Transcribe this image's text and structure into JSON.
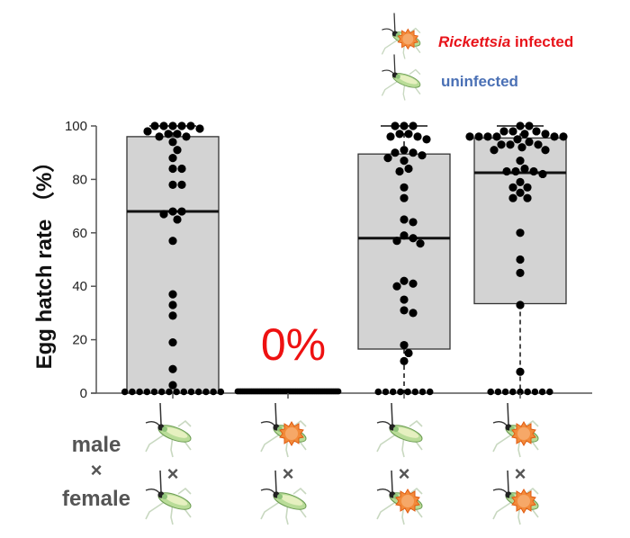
{
  "chart_data": {
    "type": "box",
    "title": "",
    "ylabel": "Egg hatch rate （%）",
    "xlabel": "",
    "ylim": [
      0,
      100
    ],
    "yticks": [
      0,
      20,
      40,
      60,
      80,
      100
    ],
    "grid": false,
    "legend": {
      "placement": "top-right",
      "entries": [
        {
          "name": "Rickettsia",
          "suffix": " infected",
          "icon": "infected-bug-icon",
          "color": "#e8141b"
        },
        {
          "name": "uninfected",
          "suffix": "",
          "icon": "uninfected-bug-icon",
          "color": "#4a70b5"
        }
      ]
    },
    "row_labels": {
      "male": "male",
      "cross": "×",
      "female": "female"
    },
    "groups": [
      {
        "name": "uninfected male × uninfected female",
        "male": "uninfected",
        "female": "uninfected",
        "box": {
          "whisker_low": 0,
          "q1": 0,
          "median": 68,
          "q3": 96,
          "whisker_high": 100
        },
        "points": [
          100,
          100,
          100,
          100,
          100,
          99,
          98,
          97,
          97,
          96,
          96,
          94,
          91,
          88,
          84,
          84,
          78,
          78,
          68,
          68,
          67,
          65,
          57,
          37,
          33,
          29,
          19,
          9,
          3,
          0,
          0,
          0,
          0,
          0,
          0,
          0,
          0,
          0,
          0,
          0,
          0,
          0,
          0
        ],
        "annotation": ""
      },
      {
        "name": "infected male × uninfected female",
        "male": "infected",
        "female": "uninfected",
        "box": {
          "whisker_low": 0,
          "q1": 0,
          "median": 0,
          "q3": 0,
          "whisker_high": 0
        },
        "points": [
          0,
          0,
          0,
          0,
          0,
          0,
          0,
          0,
          0,
          0,
          0,
          0,
          0,
          0,
          0,
          0,
          0,
          0,
          0,
          0,
          0,
          0,
          0,
          0,
          0,
          0,
          0,
          0,
          0,
          0,
          0,
          0,
          0,
          0,
          0,
          0,
          0,
          0,
          0,
          0,
          0,
          0,
          0,
          0,
          0,
          0,
          0,
          0,
          0,
          0,
          0,
          0,
          0,
          0,
          0,
          0,
          0,
          0,
          0,
          0
        ],
        "annotation": "0%"
      },
      {
        "name": "uninfected male × infected female",
        "male": "uninfected",
        "female": "infected",
        "box": {
          "whisker_low": 0,
          "q1": 16.5,
          "median": 58,
          "q3": 89.5,
          "whisker_high": 100
        },
        "points": [
          100,
          100,
          100,
          97,
          97,
          96,
          96,
          95,
          91,
          90,
          90,
          89,
          88,
          87,
          84,
          83,
          77,
          73,
          65,
          64,
          59,
          58,
          57,
          56,
          42,
          41,
          40,
          35,
          31,
          30,
          18,
          15,
          12,
          0,
          0,
          0,
          0,
          0,
          0,
          0,
          0
        ],
        "annotation": ""
      },
      {
        "name": "infected male × infected female",
        "male": "infected",
        "female": "infected",
        "box": {
          "whisker_low": 0,
          "q1": 33.5,
          "median": 82.5,
          "q3": 95.5,
          "whisker_high": 100
        },
        "points": [
          100,
          100,
          98,
          98,
          98,
          97,
          97,
          96,
          96,
          96,
          96,
          96,
          96,
          95,
          94,
          93,
          93,
          91,
          91,
          92,
          93,
          87,
          84,
          83,
          83,
          82,
          83,
          79,
          77,
          77,
          75,
          73,
          73,
          60,
          50,
          45,
          33,
          8,
          0,
          0,
          0,
          0,
          0,
          0,
          0,
          0,
          0
        ],
        "annotation": ""
      }
    ]
  }
}
